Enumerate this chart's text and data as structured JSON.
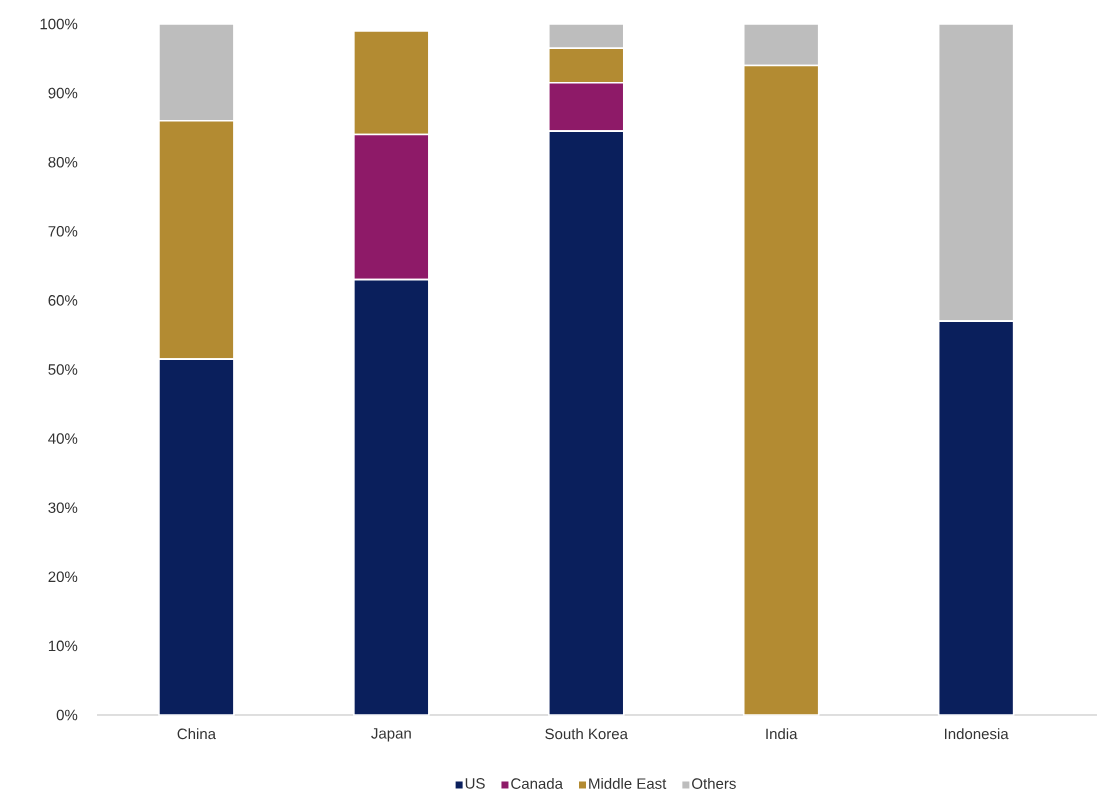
{
  "chart_data": {
    "type": "bar",
    "stacked": true,
    "categories": [
      "China",
      "Japan",
      "South Korea",
      "India",
      "Indonesia"
    ],
    "series": [
      {
        "name": "US",
        "color": "#0a1f5c",
        "values": [
          51.5,
          63,
          84.5,
          0,
          57
        ]
      },
      {
        "name": "Canada",
        "color": "#8e1a68",
        "values": [
          0,
          21,
          7,
          0,
          0
        ]
      },
      {
        "name": "Middle East",
        "color": "#b38b32",
        "values": [
          34.5,
          15,
          5,
          94,
          0
        ]
      },
      {
        "name": "Others",
        "color": "#bdbdbd",
        "values": [
          14,
          0,
          3.5,
          6,
          43
        ]
      }
    ],
    "ylim": [
      0,
      100
    ],
    "yticks": [
      {
        "value": 0,
        "label": "0%"
      },
      {
        "value": 10,
        "label": "10%"
      },
      {
        "value": 20,
        "label": "20%"
      },
      {
        "value": 30,
        "label": "30%"
      },
      {
        "value": 40,
        "label": "40%"
      },
      {
        "value": 50,
        "label": "50%"
      },
      {
        "value": 60,
        "label": "60%"
      },
      {
        "value": 70,
        "label": "70%"
      },
      {
        "value": 80,
        "label": "80%"
      },
      {
        "value": 90,
        "label": "90%"
      },
      {
        "value": 100,
        "label": "100%"
      }
    ],
    "grid": false,
    "legend": "bottom"
  }
}
